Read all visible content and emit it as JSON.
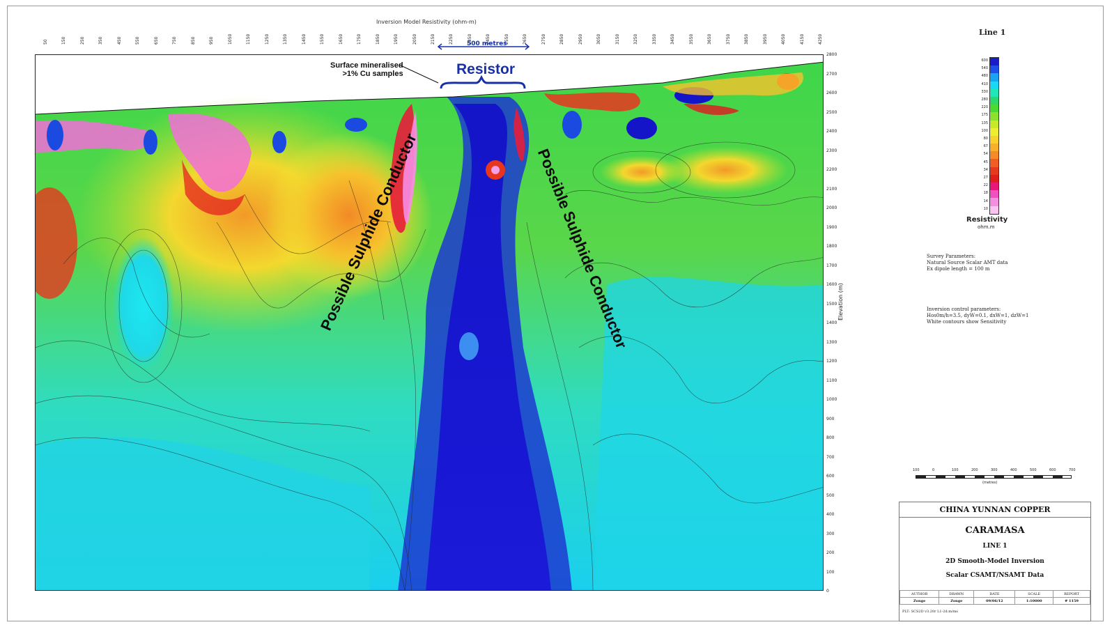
{
  "plot": {
    "title": "Inversion Model Resistivity (ohm-m)",
    "station_ticks": [
      "50",
      "150",
      "250",
      "350",
      "450",
      "550",
      "650",
      "750",
      "850",
      "950",
      "1050",
      "1150",
      "1250",
      "1350",
      "1450",
      "1550",
      "1650",
      "1750",
      "1850",
      "1950",
      "2050",
      "2150",
      "2250",
      "2350",
      "2450",
      "2550",
      "2650",
      "2750",
      "2850",
      "2950",
      "3050",
      "3150",
      "3250",
      "3350",
      "3450",
      "3550",
      "3650",
      "3750",
      "3850",
      "3950",
      "4050",
      "4150",
      "4250"
    ],
    "elevation_ticks": [
      "2800",
      "2700",
      "2600",
      "2500",
      "2400",
      "2300",
      "2200",
      "2100",
      "2000",
      "1900",
      "1800",
      "1700",
      "1600",
      "1500",
      "1400",
      "1300",
      "1200",
      "1100",
      "1000",
      "900",
      "800",
      "700",
      "600",
      "500",
      "400",
      "300",
      "200",
      "100",
      "0"
    ],
    "elevation_label": "Elevation (m)",
    "scale_label": "500 metres"
  },
  "annotations": {
    "resistor": "Resistor",
    "surface_line1": "Surface mineralised",
    "surface_line2": ">1% Cu samples",
    "conductor_left": "Possible Sulphide Conductor",
    "conductor_right": "Possible Sulphide Conductor"
  },
  "legend": {
    "line_title": "Line 1",
    "values": [
      "600",
      "540",
      "480",
      "410",
      "330",
      "280",
      "220",
      "175",
      "135",
      "100",
      "80",
      "67",
      "54",
      "45",
      "34",
      "27",
      "22",
      "18",
      "14",
      "10"
    ],
    "colors": [
      "#1b1bc8",
      "#1e4fe8",
      "#17a4f0",
      "#18d9f2",
      "#20e6b8",
      "#2cd86a",
      "#4cd934",
      "#8fe02c",
      "#c8e82a",
      "#eeee30",
      "#f7d22c",
      "#f7b02a",
      "#f58a26",
      "#ef5f22",
      "#e63a1e",
      "#df1f1c",
      "#e8187a",
      "#f050c0",
      "#f48fe0",
      "#f8c4f0"
    ],
    "title": "Resistivity",
    "unit": "ohm.m"
  },
  "survey": {
    "heading": "Survey Parameters:",
    "line1": "Natural Source Scalar AMT data",
    "line2": "Ex dipole length = 100 m"
  },
  "inversion": {
    "heading": "Inversion control parameters:",
    "line1": "Hos0m/h=3.5, dyW=0.1, dxW=1, dzW=1",
    "line2": "White contours show Sensitivity"
  },
  "km_scale": {
    "labels": [
      "100",
      "0",
      "100",
      "200",
      "300",
      "400",
      "500",
      "600",
      "700"
    ],
    "unit": "(metres)"
  },
  "title_block": {
    "company": "CHINA YUNNAN COPPER",
    "project": "CARAMASA",
    "line": "LINE 1",
    "desc1": "2D Smooth-Model Inversion",
    "desc2": "Scalar CSAMT/NSAMT Data",
    "headers": [
      "AUTHOR",
      "DRAWN",
      "DATE",
      "SCALE",
      "REPORT"
    ],
    "values": [
      "Zonge",
      "Zonge",
      "09/06/12",
      "1:10000",
      "# 1159"
    ],
    "footer": "PLT: SCS2D v3.20r L1-2d.m/ms"
  }
}
